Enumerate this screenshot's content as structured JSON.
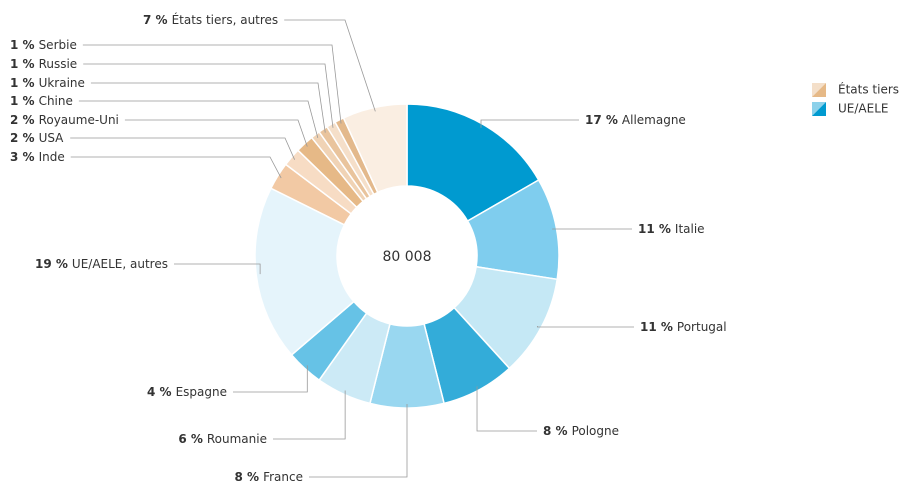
{
  "chart_data": {
    "type": "donut",
    "center_label": "80 008",
    "categories": [
      "Allemagne",
      "Italie",
      "Portugal",
      "Pologne",
      "France",
      "Roumanie",
      "Espagne",
      "UE/AELE, autres",
      "Inde",
      "USA",
      "Royaume-Uni",
      "Chine",
      "Ukraine",
      "Russie",
      "Serbie",
      "États tiers, autres"
    ],
    "values": [
      17,
      11,
      11,
      8,
      8,
      6,
      4,
      19,
      3,
      2,
      2,
      1,
      1,
      1,
      1,
      7
    ],
    "value_labels": [
      "17 %",
      "11 %",
      "11 %",
      "8 %",
      "8 %",
      "6 %",
      "4 %",
      "19 %",
      "3 %",
      "2 %",
      "2 %",
      "1 %",
      "1 %",
      "1 %",
      "1 %",
      "7 %"
    ],
    "colors": [
      "#009ad0",
      "#7fcdee",
      "#c5e8f5",
      "#33acd9",
      "#99d7f0",
      "#cceaf6",
      "#66c2e6",
      "#e5f4fb",
      "#f2c9a4",
      "#f7dcc4",
      "#e6b987",
      "#f0d3b5",
      "#e9c49d",
      "#f5dfc9",
      "#e3b98c",
      "#faeee2"
    ],
    "legend": [
      {
        "name": "États tiers",
        "color": "#e6b987"
      },
      {
        "name": "UE/AELE",
        "color": "#009ad0"
      }
    ]
  }
}
